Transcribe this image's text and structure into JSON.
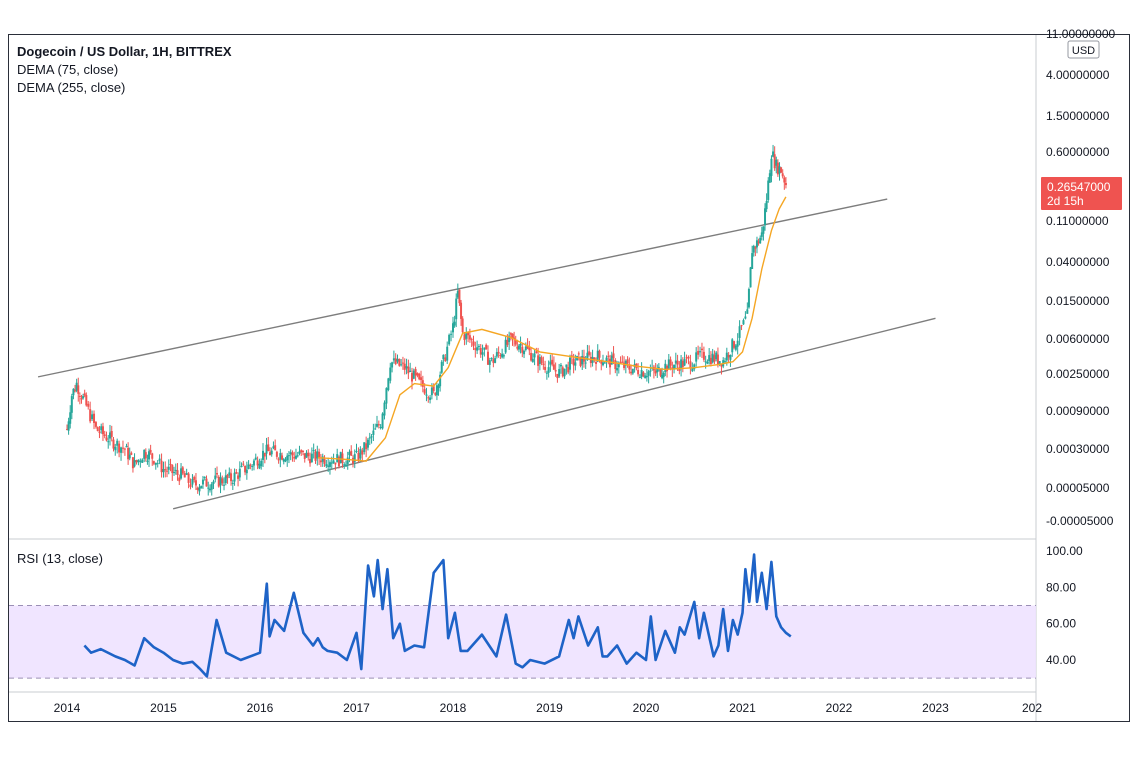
{
  "header": {
    "symbol_title": "Dogecoin / US Dollar, 1H, BITTREX",
    "indicator_1": "DEMA (75, close)",
    "indicator_2": "DEMA (255, close)",
    "currency_badge": "USD"
  },
  "price_tag": {
    "value": "0.26547000",
    "countdown": "2d 15h",
    "color": "#ef5350"
  },
  "rsi_panel": {
    "label": "RSI (13, close)"
  },
  "colors": {
    "up_candle": "#26a69a",
    "down_candle": "#ef5350",
    "dema": "#f5a623",
    "rsi_line": "#1e63c7",
    "rsi_band": "#ede1ff",
    "trend_line": "#7d7d7d"
  },
  "chart_data": [
    {
      "type": "line",
      "title": "Dogecoin / US Dollar, 1H, BITTREX",
      "y_scale": "log",
      "y_tick_labels": [
        "11.00000000",
        "4.00000000",
        "1.50000000",
        "0.60000000",
        "0.11000000",
        "0.04000000",
        "0.01500000",
        "0.00600000",
        "0.00250000",
        "0.00090000",
        "0.00030000",
        "0.00005000",
        "-0.00005000"
      ],
      "x_tick_labels": [
        "2014",
        "2015",
        "2016",
        "2017",
        "2018",
        "2019",
        "2020",
        "2021",
        "2022",
        "2023",
        "202"
      ],
      "last_price": 0.26547,
      "series": [
        {
          "name": "Price",
          "style": "candles",
          "x": [
            2014.0,
            2014.05,
            2014.1,
            2014.2,
            2014.3,
            2014.5,
            2014.6,
            2014.7,
            2014.8,
            2014.9,
            2015.0,
            2015.2,
            2015.3,
            2015.5,
            2015.7,
            2015.9,
            2016.05,
            2016.3,
            2016.5,
            2016.8,
            2017.0,
            2017.1,
            2017.25,
            2017.35,
            2017.5,
            2017.65,
            2017.8,
            2017.9,
            2018.0,
            2018.05,
            2018.1,
            2018.25,
            2018.4,
            2018.6,
            2018.7,
            2018.9,
            2019.1,
            2019.25,
            2019.5,
            2019.7,
            2019.9,
            2020.1,
            2020.2,
            2020.4,
            2020.5,
            2020.6,
            2020.8,
            2020.95,
            2021.05,
            2021.1,
            2021.15,
            2021.2,
            2021.25,
            2021.3,
            2021.35,
            2021.4,
            2021.45
          ],
          "values": [
            0.0005,
            0.0012,
            0.0016,
            0.0009,
            0.0005,
            0.00035,
            0.0003,
            0.0002,
            0.00028,
            0.00024,
            0.00018,
            0.00015,
            0.00012,
            0.00013,
            0.00014,
            0.0002,
            0.00028,
            0.00026,
            0.00025,
            0.00023,
            0.00024,
            0.00032,
            0.0006,
            0.0028,
            0.0024,
            0.0016,
            0.0012,
            0.0028,
            0.0068,
            0.016,
            0.0058,
            0.0042,
            0.0028,
            0.0048,
            0.0044,
            0.0028,
            0.0021,
            0.0028,
            0.0032,
            0.0026,
            0.0023,
            0.0021,
            0.0025,
            0.0027,
            0.0029,
            0.0033,
            0.0029,
            0.0052,
            0.009,
            0.05,
            0.058,
            0.072,
            0.18,
            0.6,
            0.42,
            0.38,
            0.26547
          ]
        },
        {
          "name": "DEMA (75, close)",
          "style": "line",
          "x": [
            2016.6,
            2016.9,
            2017.1,
            2017.3,
            2017.45,
            2017.6,
            2017.8,
            2017.95,
            2018.1,
            2018.3,
            2018.6,
            2018.9,
            2019.3,
            2019.6,
            2019.9,
            2020.2,
            2020.5,
            2020.75,
            2020.9,
            2021.0,
            2021.1,
            2021.2,
            2021.3,
            2021.38,
            2021.45
          ],
          "values": [
            0.00024,
            0.00023,
            0.00022,
            0.0004,
            0.0012,
            0.0016,
            0.0015,
            0.0024,
            0.0058,
            0.0064,
            0.0052,
            0.0036,
            0.0031,
            0.0028,
            0.0025,
            0.0023,
            0.0024,
            0.0026,
            0.0028,
            0.0036,
            0.0085,
            0.03,
            0.08,
            0.14,
            0.19
          ]
        }
      ],
      "trend_lines": [
        {
          "name": "upper",
          "x": [
            2013.7,
            2022.5
          ],
          "y": [
            0.0019,
            0.18
          ]
        },
        {
          "name": "lower",
          "x": [
            2015.1,
            2023.0
          ],
          "y": [
            6.5e-05,
            0.0085
          ]
        }
      ]
    },
    {
      "type": "line",
      "title": "RSI (13, close)",
      "ylim": [
        25,
        100
      ],
      "y_tick_labels": [
        "100.00",
        "80.00",
        "60.00",
        "40.00"
      ],
      "bands": [
        30,
        70
      ],
      "x_tick_labels": [
        "2014",
        "2015",
        "2016",
        "2017",
        "2018",
        "2019",
        "2020",
        "2021",
        "2022",
        "2023",
        "202"
      ],
      "series": [
        {
          "name": "RSI (13, close)",
          "x": [
            2014.18,
            2014.25,
            2014.35,
            2014.5,
            2014.6,
            2014.7,
            2014.8,
            2014.9,
            2015.0,
            2015.1,
            2015.2,
            2015.3,
            2015.38,
            2015.45,
            2015.55,
            2015.65,
            2015.8,
            2016.0,
            2016.07,
            2016.1,
            2016.15,
            2016.25,
            2016.35,
            2016.45,
            2016.55,
            2016.6,
            2016.65,
            2016.7,
            2016.8,
            2016.9,
            2017.0,
            2017.05,
            2017.12,
            2017.18,
            2017.22,
            2017.27,
            2017.32,
            2017.38,
            2017.45,
            2017.5,
            2017.6,
            2017.7,
            2017.8,
            2017.9,
            2017.95,
            2018.02,
            2018.08,
            2018.15,
            2018.3,
            2018.45,
            2018.55,
            2018.65,
            2018.72,
            2018.8,
            2018.95,
            2019.1,
            2019.2,
            2019.25,
            2019.3,
            2019.4,
            2019.5,
            2019.55,
            2019.6,
            2019.7,
            2019.8,
            2019.9,
            2020.0,
            2020.05,
            2020.1,
            2020.2,
            2020.3,
            2020.35,
            2020.4,
            2020.5,
            2020.55,
            2020.6,
            2020.7,
            2020.75,
            2020.8,
            2020.85,
            2020.9,
            2020.95,
            2021.0,
            2021.03,
            2021.07,
            2021.12,
            2021.15,
            2021.2,
            2021.25,
            2021.3,
            2021.35,
            2021.4,
            2021.45,
            2021.5
          ],
          "values": [
            48,
            44,
            46,
            42,
            40,
            37,
            52,
            47,
            44,
            40,
            38,
            39,
            35,
            31,
            62,
            44,
            40,
            44,
            82,
            53,
            62,
            56,
            77,
            55,
            48,
            52,
            47,
            45,
            44,
            40,
            55,
            35,
            92,
            75,
            95,
            68,
            90,
            52,
            60,
            45,
            48,
            47,
            88,
            95,
            52,
            66,
            45,
            45,
            54,
            42,
            65,
            38,
            36,
            40,
            38,
            42,
            62,
            52,
            64,
            48,
            58,
            42,
            42,
            48,
            38,
            44,
            40,
            64,
            40,
            56,
            44,
            58,
            54,
            72,
            52,
            66,
            42,
            48,
            68,
            45,
            62,
            54,
            66,
            90,
            72,
            98,
            72,
            88,
            68,
            94,
            64,
            58,
            55,
            53
          ]
        }
      ]
    }
  ]
}
